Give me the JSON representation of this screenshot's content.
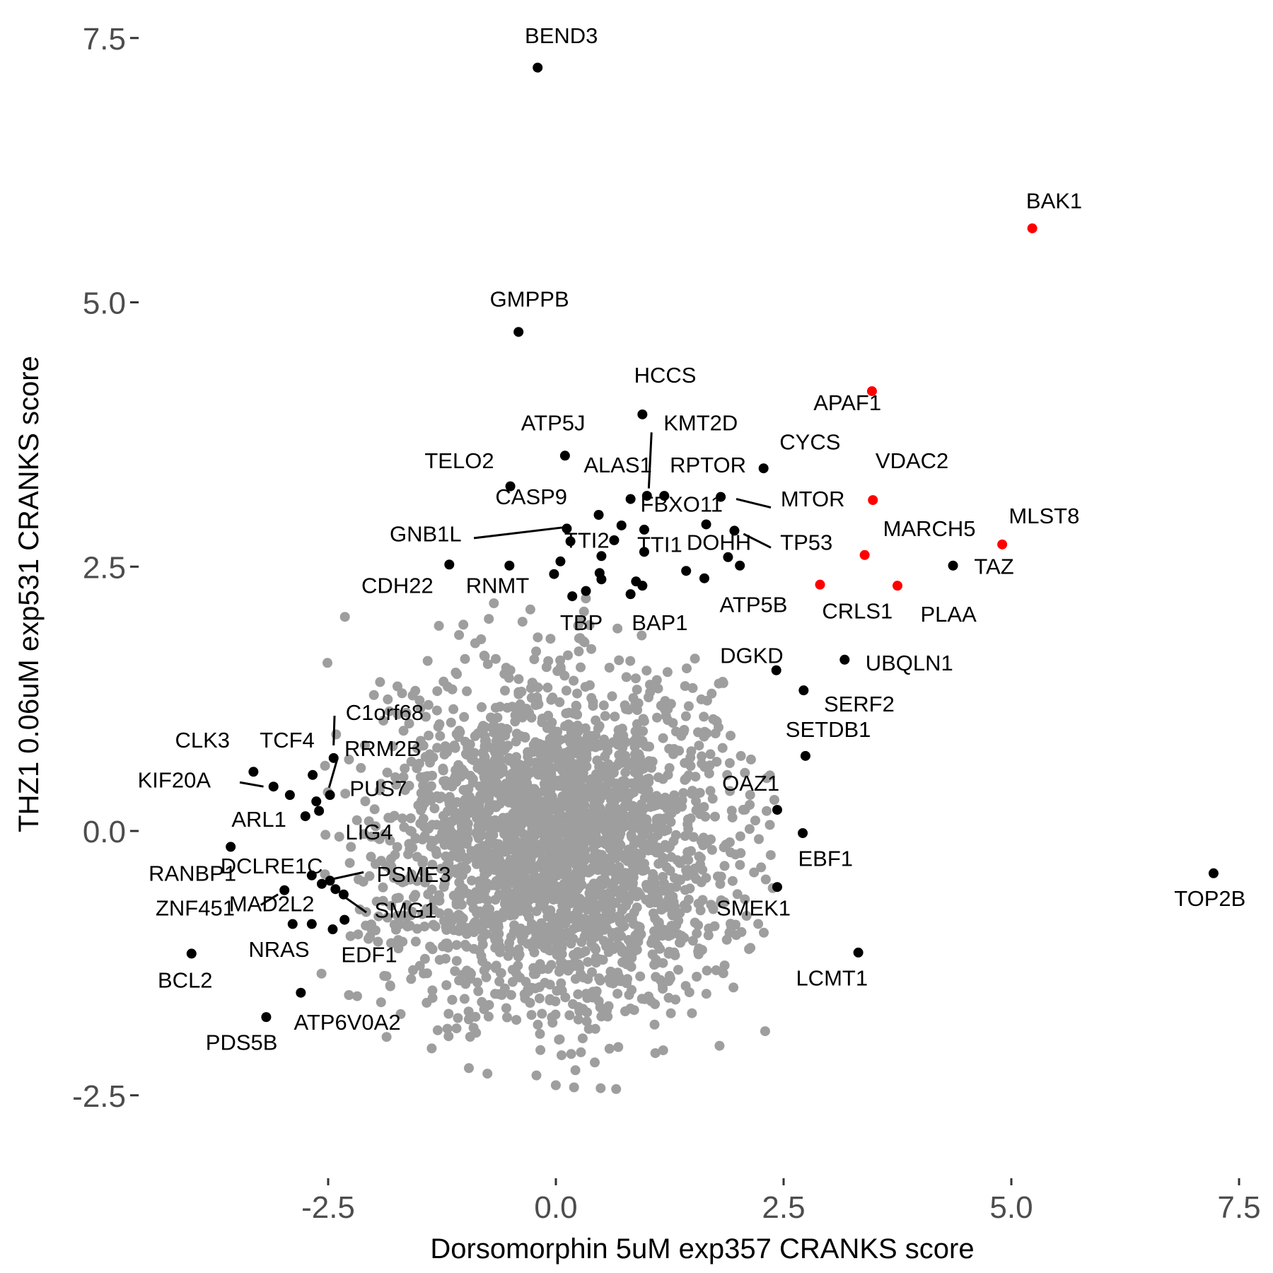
{
  "chart_data": {
    "type": "scatter",
    "xlabel": "Dorsomorphin 5uM exp357 CRANKS score",
    "ylabel": "THZ1 0.06uM exp531 CRANKS score",
    "xlim": [
      -4.6,
      7.5
    ],
    "ylim": [
      -3.2,
      7.75
    ],
    "x_ticks": [
      -2.5,
      0.0,
      2.5,
      5.0,
      7.5
    ],
    "x_tick_labels": [
      "-2.5",
      "0.0",
      "2.5",
      "5.0",
      "7.5"
    ],
    "y_ticks": [
      -2.5,
      0.0,
      2.5,
      5.0,
      7.5
    ],
    "y_tick_labels": [
      "-2.5",
      "0.0",
      "2.5",
      "5.0",
      "7.5"
    ],
    "grid": false,
    "colors": {
      "background": "#4d4d4d",
      "highlight": "#ff0000",
      "labeled": "#000000"
    },
    "background_cloud": {
      "center": [
        0.0,
        -0.1
      ],
      "sd": [
        0.95,
        0.8
      ],
      "count": 2600
    },
    "highlighted_points": [
      {
        "label": "BAK1",
        "x": 5.23,
        "y": 5.7
      },
      {
        "label": "APAF1",
        "x": 3.47,
        "y": 4.16
      },
      {
        "label": "VDAC2",
        "x": 3.48,
        "y": 3.13
      },
      {
        "label": "MLST8",
        "x": 4.9,
        "y": 2.71
      },
      {
        "label": "MARCH5",
        "x": 3.39,
        "y": 2.61
      },
      {
        "label": "CRLS1",
        "x": 2.9,
        "y": 2.33
      },
      {
        "label": "PLAA",
        "x": 3.75,
        "y": 2.32
      }
    ],
    "labeled_points": [
      {
        "label": "BEND3",
        "x": -0.2,
        "y": 7.22
      },
      {
        "label": "GMPPB",
        "x": -0.41,
        "y": 4.72
      },
      {
        "label": "HCCS",
        "x": 0.95,
        "y": 3.94
      },
      {
        "label": "ATP5J",
        "x": 0.1,
        "y": 3.55
      },
      {
        "label": "KMT2D",
        "x": 1.0,
        "y": 3.17
      },
      {
        "label": "CYCS",
        "x": 2.28,
        "y": 3.43
      },
      {
        "label": "TELO2",
        "x": -0.5,
        "y": 3.26
      },
      {
        "label": "ALAS1",
        "x": 0.82,
        "y": 3.14
      },
      {
        "label": "RPTOR",
        "x": 1.19,
        "y": 3.17
      },
      {
        "label": "MTOR",
        "x": 1.81,
        "y": 3.16
      },
      {
        "label": "CASP9",
        "x": 0.47,
        "y": 2.99
      },
      {
        "label": "FBXO11",
        "x": 0.97,
        "y": 2.85
      },
      {
        "label": "GNB1L",
        "x": 0.12,
        "y": 2.86
      },
      {
        "label": "TTI2",
        "x": 0.16,
        "y": 2.74
      },
      {
        "label": "TTI1",
        "x": 0.97,
        "y": 2.64
      },
      {
        "label": "DOHH",
        "x": 1.89,
        "y": 2.59
      },
      {
        "label": "TP53",
        "x": 1.96,
        "y": 2.84
      },
      {
        "label": "TAZ",
        "x": 4.36,
        "y": 2.51
      },
      {
        "label": "CDH22",
        "x": -1.17,
        "y": 2.52
      },
      {
        "label": "RNMT",
        "x": -0.51,
        "y": 2.51
      },
      {
        "label": "ATP5B",
        "x": 1.63,
        "y": 2.39
      },
      {
        "label": "TBP",
        "x": 0.18,
        "y": 2.22
      },
      {
        "label": "BAP1",
        "x": 0.82,
        "y": 2.24
      },
      {
        "label": "UBQLN1",
        "x": 3.17,
        "y": 1.62
      },
      {
        "label": "DGKD",
        "x": 2.42,
        "y": 1.52
      },
      {
        "label": "SERF2",
        "x": 2.72,
        "y": 1.33
      },
      {
        "label": "SETDB1",
        "x": 2.74,
        "y": 0.71
      },
      {
        "label": "C1orf68",
        "x": -2.44,
        "y": 0.69
      },
      {
        "label": "RRM2B",
        "x": -2.48,
        "y": 0.34
      },
      {
        "label": "CLK3",
        "x": -3.32,
        "y": 0.56
      },
      {
        "label": "TCF4",
        "x": -2.67,
        "y": 0.53
      },
      {
        "label": "KIF20A",
        "x": -3.1,
        "y": 0.42
      },
      {
        "label": "PUS7",
        "x": -2.6,
        "y": 0.19
      },
      {
        "label": "OAZ1",
        "x": 2.43,
        "y": 0.2
      },
      {
        "label": "ARL1",
        "x": -2.75,
        "y": 0.14
      },
      {
        "label": "LIG4",
        "x": -2.63,
        "y": 0.28
      },
      {
        "label": "EBF1",
        "x": 2.71,
        "y": -0.02
      },
      {
        "label": "RANBP1",
        "x": -3.57,
        "y": -0.15
      },
      {
        "label": "DCLRE1C",
        "x": -2.68,
        "y": -0.42
      },
      {
        "label": "PSME3",
        "x": -2.57,
        "y": -0.5
      },
      {
        "label": "MAD2L2",
        "x": -2.42,
        "y": -0.55
      },
      {
        "label": "SMG1",
        "x": -2.33,
        "y": -0.6
      },
      {
        "label": "ZNF451",
        "x": -2.98,
        "y": -0.56
      },
      {
        "label": "SMEK1",
        "x": 2.43,
        "y": -0.53
      },
      {
        "label": "TOP2B",
        "x": 7.22,
        "y": -0.4
      },
      {
        "label": "NRAS",
        "x": -2.89,
        "y": -0.88
      },
      {
        "label": "EDF1",
        "x": -2.45,
        "y": -0.93
      },
      {
        "label": "BCL2",
        "x": -4.0,
        "y": -1.16
      },
      {
        "label": "LCMT1",
        "x": 3.32,
        "y": -1.15
      },
      {
        "label": "ATP6V0A2",
        "x": -2.8,
        "y": -1.53
      },
      {
        "label": "PDS5B",
        "x": -3.18,
        "y": -1.76
      },
      {
        "label": "",
        "x": 0.05,
        "y": 2.55
      },
      {
        "label": "",
        "x": -0.02,
        "y": 2.43
      },
      {
        "label": "",
        "x": 0.48,
        "y": 2.44
      },
      {
        "label": "",
        "x": 0.5,
        "y": 2.38
      },
      {
        "label": "",
        "x": 0.5,
        "y": 2.6
      },
      {
        "label": "",
        "x": 0.64,
        "y": 2.75
      },
      {
        "label": "",
        "x": 0.72,
        "y": 2.89
      },
      {
        "label": "",
        "x": 0.88,
        "y": 2.36
      },
      {
        "label": "",
        "x": 0.95,
        "y": 2.32
      },
      {
        "label": "",
        "x": 0.33,
        "y": 2.27
      },
      {
        "label": "",
        "x": 1.43,
        "y": 2.46
      },
      {
        "label": "",
        "x": 1.65,
        "y": 2.9
      },
      {
        "label": "",
        "x": 2.02,
        "y": 2.51
      },
      {
        "label": "",
        "x": -2.92,
        "y": 0.34
      },
      {
        "label": "",
        "x": -2.48,
        "y": -0.47
      },
      {
        "label": "",
        "x": -2.32,
        "y": -0.84
      },
      {
        "label": "",
        "x": -2.68,
        "y": -0.88
      }
    ],
    "labels": [
      {
        "text": "BEND3",
        "x": 0.06,
        "y": 7.45,
        "anchor": "middle"
      },
      {
        "text": "BAK1",
        "x": 5.47,
        "y": 5.89,
        "anchor": "middle"
      },
      {
        "text": "GMPPB",
        "x": -0.29,
        "y": 4.96,
        "anchor": "middle"
      },
      {
        "text": "HCCS",
        "x": 1.2,
        "y": 4.24,
        "anchor": "middle"
      },
      {
        "text": "APAF1",
        "x": 3.2,
        "y": 3.98,
        "anchor": "middle"
      },
      {
        "text": "ATP5J",
        "x": -0.03,
        "y": 3.79,
        "anchor": "middle"
      },
      {
        "text": "KMT2D",
        "x": 1.59,
        "y": 3.79,
        "anchor": "middle"
      },
      {
        "text": "CYCS",
        "x": 2.79,
        "y": 3.61,
        "anchor": "middle"
      },
      {
        "text": "TELO2",
        "x": -1.06,
        "y": 3.43,
        "anchor": "middle"
      },
      {
        "text": "VDAC2",
        "x": 3.91,
        "y": 3.43,
        "anchor": "middle"
      },
      {
        "text": "ALAS1",
        "x": 0.68,
        "y": 3.39,
        "anchor": "middle"
      },
      {
        "text": "RPTOR",
        "x": 1.67,
        "y": 3.39,
        "anchor": "middle"
      },
      {
        "text": "MTOR",
        "x": 2.82,
        "y": 3.07,
        "anchor": "middle"
      },
      {
        "text": "CASP9",
        "x": -0.27,
        "y": 3.09,
        "anchor": "middle"
      },
      {
        "text": "FBXO11",
        "x": 1.38,
        "y": 3.02,
        "anchor": "middle"
      },
      {
        "text": "MLST8",
        "x": 5.36,
        "y": 2.91,
        "anchor": "middle"
      },
      {
        "text": "MARCH5",
        "x": 4.1,
        "y": 2.79,
        "anchor": "middle"
      },
      {
        "text": "GNB1L",
        "x": -1.43,
        "y": 2.74,
        "anchor": "middle"
      },
      {
        "text": "TTI2",
        "x": 0.34,
        "y": 2.68,
        "anchor": "middle"
      },
      {
        "text": "TTI1",
        "x": 1.14,
        "y": 2.64,
        "anchor": "middle"
      },
      {
        "text": "DOHH",
        "x": 1.79,
        "y": 2.66,
        "anchor": "middle"
      },
      {
        "text": "TP53",
        "x": 2.75,
        "y": 2.66,
        "anchor": "middle"
      },
      {
        "text": "TAZ",
        "x": 4.81,
        "y": 2.43,
        "anchor": "middle"
      },
      {
        "text": "CDH22",
        "x": -1.74,
        "y": 2.25,
        "anchor": "middle"
      },
      {
        "text": "RNMT",
        "x": -0.64,
        "y": 2.25,
        "anchor": "middle"
      },
      {
        "text": "ATP5B",
        "x": 2.17,
        "y": 2.07,
        "anchor": "middle"
      },
      {
        "text": "CRLS1",
        "x": 3.31,
        "y": 2.01,
        "anchor": "middle"
      },
      {
        "text": "PLAA",
        "x": 4.31,
        "y": 1.98,
        "anchor": "middle"
      },
      {
        "text": "TBP",
        "x": 0.28,
        "y": 1.9,
        "anchor": "middle"
      },
      {
        "text": "BAP1",
        "x": 1.14,
        "y": 1.9,
        "anchor": "middle"
      },
      {
        "text": "DGKD",
        "x": 2.15,
        "y": 1.59,
        "anchor": "middle"
      },
      {
        "text": "UBQLN1",
        "x": 3.88,
        "y": 1.52,
        "anchor": "middle"
      },
      {
        "text": "SERF2",
        "x": 3.33,
        "y": 1.13,
        "anchor": "middle"
      },
      {
        "text": "C1orf68",
        "x": -1.88,
        "y": 1.05,
        "anchor": "middle"
      },
      {
        "text": "SETDB1",
        "x": 2.99,
        "y": 0.89,
        "anchor": "middle"
      },
      {
        "text": "CLK3",
        "x": -3.88,
        "y": 0.79,
        "anchor": "middle"
      },
      {
        "text": "TCF4",
        "x": -2.95,
        "y": 0.79,
        "anchor": "middle"
      },
      {
        "text": "RRM2B",
        "x": -1.9,
        "y": 0.71,
        "anchor": "middle"
      },
      {
        "text": "KIF20A",
        "x": -4.19,
        "y": 0.41,
        "anchor": "middle"
      },
      {
        "text": "PUS7",
        "x": -1.95,
        "y": 0.33,
        "anchor": "middle"
      },
      {
        "text": "OAZ1",
        "x": 2.14,
        "y": 0.38,
        "anchor": "middle"
      },
      {
        "text": "ARL1",
        "x": -3.26,
        "y": 0.04,
        "anchor": "middle"
      },
      {
        "text": "LIG4",
        "x": -2.05,
        "y": -0.08,
        "anchor": "middle"
      },
      {
        "text": "EBF1",
        "x": 2.96,
        "y": -0.33,
        "anchor": "middle"
      },
      {
        "text": "RANBP1",
        "x": -3.99,
        "y": -0.47,
        "anchor": "middle"
      },
      {
        "text": "DCLRE1C",
        "x": -3.12,
        "y": -0.4,
        "anchor": "middle"
      },
      {
        "text": "PSME3",
        "x": -1.56,
        "y": -0.48,
        "anchor": "middle"
      },
      {
        "text": "MAD2L2",
        "x": -3.12,
        "y": -0.76,
        "anchor": "middle"
      },
      {
        "text": "SMG1",
        "x": -1.65,
        "y": -0.82,
        "anchor": "middle"
      },
      {
        "text": "ZNF451",
        "x": -3.96,
        "y": -0.8,
        "anchor": "middle"
      },
      {
        "text": "SMEK1",
        "x": 2.17,
        "y": -0.8,
        "anchor": "middle"
      },
      {
        "text": "TOP2B",
        "x": 7.18,
        "y": -0.71,
        "anchor": "middle"
      },
      {
        "text": "NRAS",
        "x": -3.04,
        "y": -1.19,
        "anchor": "middle"
      },
      {
        "text": "EDF1",
        "x": -2.05,
        "y": -1.24,
        "anchor": "middle"
      },
      {
        "text": "BCL2",
        "x": -4.07,
        "y": -1.48,
        "anchor": "middle"
      },
      {
        "text": "LCMT1",
        "x": 3.03,
        "y": -1.46,
        "anchor": "middle"
      },
      {
        "text": "ATP6V0A2",
        "x": -2.29,
        "y": -1.88,
        "anchor": "middle"
      },
      {
        "text": "PDS5B",
        "x": -3.45,
        "y": -2.07,
        "anchor": "middle"
      }
    ],
    "leader_lines": [
      {
        "x1": 1.05,
        "y1": 3.77,
        "x2": 1.02,
        "y2": 3.24
      },
      {
        "x1": 1.98,
        "y1": 3.14,
        "x2": 2.36,
        "y2": 3.06
      },
      {
        "x1": -0.9,
        "y1": 2.77,
        "x2": 0.07,
        "y2": 2.87
      },
      {
        "x1": 2.06,
        "y1": 2.81,
        "x2": 2.36,
        "y2": 2.68
      },
      {
        "x1": -2.43,
        "y1": 1.09,
        "x2": -2.44,
        "y2": 0.81
      },
      {
        "x1": -2.4,
        "y1": 0.68,
        "x2": -2.49,
        "y2": 0.41
      },
      {
        "x1": -3.47,
        "y1": 0.46,
        "x2": -3.21,
        "y2": 0.42
      },
      {
        "x1": -2.48,
        "y1": -0.46,
        "x2": -2.11,
        "y2": -0.39
      },
      {
        "x1": -2.31,
        "y1": -0.63,
        "x2": -2.08,
        "y2": -0.77
      },
      {
        "x1": -3.24,
        "y1": -0.7,
        "x2": -3.05,
        "y2": -0.6
      }
    ]
  }
}
